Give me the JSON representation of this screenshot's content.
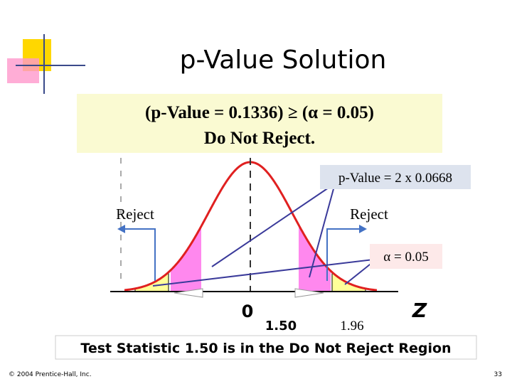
{
  "slide": {
    "title": "p-Value Solution",
    "box": {
      "line1": "(p-Value = 0.1336) ≥ (α = 0.05)",
      "line2": "Do Not Reject."
    },
    "callout_pvalue": "p-Value = 2 x 0.0668",
    "reject_left": "Reject",
    "reject_right": "Reject",
    "callout_alpha": "α = 0.05",
    "axis": {
      "zero": "0",
      "stat": "1.50",
      "critical": "1.96",
      "z": "Z"
    },
    "conclusion": "Test Statistic 1.50 is in the Do Not Reject Region",
    "footer": {
      "copyright": "© 2004 Prentice-Hall, Inc.",
      "page": "33"
    }
  }
}
